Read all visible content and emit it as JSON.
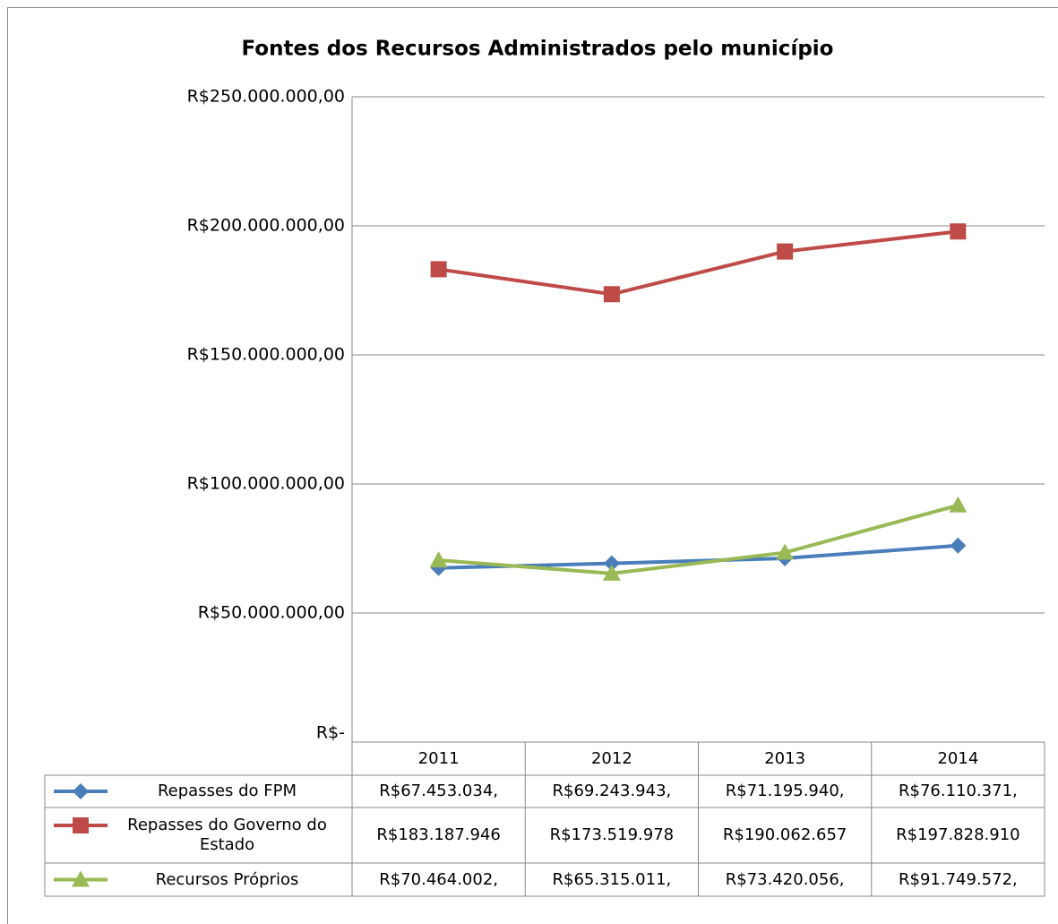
{
  "chart_data": {
    "type": "line",
    "title": "Fontes dos Recursos Administrados pelo município",
    "categories": [
      "2011",
      "2012",
      "2013",
      "2014"
    ],
    "series": [
      {
        "name": "Repasses do FPM",
        "color": "#4a7ebb",
        "marker": "diamond",
        "values": [
          67453034,
          69243943,
          71195940,
          76110371
        ],
        "value_labels": [
          "R$67.453.034,",
          "R$69.243.943,",
          "R$71.195.940,",
          "R$76.110.371,"
        ]
      },
      {
        "name": "Repasses do Governo do Estado",
        "color": "#be4b48",
        "marker": "square",
        "values": [
          183187946,
          173519978,
          190062657,
          197828910
        ],
        "value_labels": [
          "R$183.187.946",
          "R$173.519.978",
          "R$190.062.657",
          "R$197.828.910"
        ]
      },
      {
        "name": "Recursos Próprios",
        "color": "#98b954",
        "marker": "triangle",
        "values": [
          70464002,
          65315011,
          73420056,
          91749572
        ],
        "value_labels": [
          "R$70.464.002,",
          "R$65.315.011,",
          "R$73.420.056,",
          "R$91.749.572,"
        ]
      }
    ],
    "ylim": [
      0,
      250000000
    ],
    "yticks": [
      {
        "value": 0,
        "label": "R$-"
      },
      {
        "value": 50000000,
        "label": "R$50.000.000,00"
      },
      {
        "value": 100000000,
        "label": "R$100.000.000,00"
      },
      {
        "value": 150000000,
        "label": "R$150.000.000,00"
      },
      {
        "value": 200000000,
        "label": "R$200.000.000,00"
      },
      {
        "value": 250000000,
        "label": "R$250.000.000,00"
      }
    ],
    "grid": true,
    "data_table": true
  }
}
